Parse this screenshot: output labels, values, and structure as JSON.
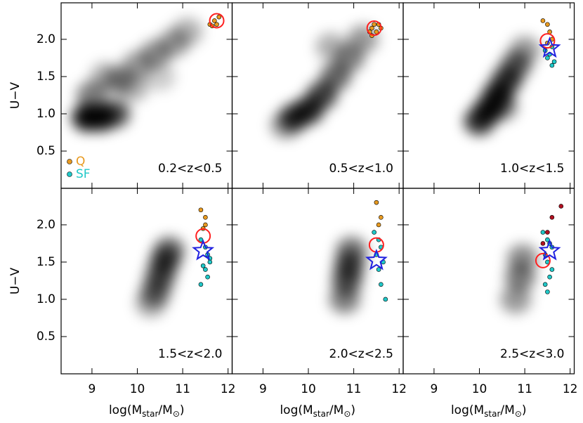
{
  "chart_data": [
    {
      "type": "scatter",
      "label": "0.2<z<0.5",
      "xlim": [
        8.32,
        12.09
      ],
      "ylim": [
        0.0,
        2.49
      ],
      "xticks": [
        9,
        10,
        11,
        12
      ],
      "yticks": [
        0.5,
        {
          "value": 1,
          "label": "1.0"
        },
        1.5,
        {
          "value": 2,
          "label": "2.0"
        }
      ],
      "density": {
        "x": [
          8.9,
          9.2,
          9.5,
          9.0,
          9.6,
          10.0,
          10.4,
          10.8,
          11.1,
          9.3,
          9.9,
          10.5
        ],
        "y": [
          0.95,
          0.95,
          1.0,
          1.25,
          1.45,
          1.65,
          1.8,
          1.95,
          2.1,
          1.5,
          1.35,
          1.5
        ],
        "values": [
          0.95,
          0.9,
          0.7,
          0.5,
          0.45,
          0.4,
          0.45,
          0.4,
          0.3,
          0.3,
          0.3,
          0.2
        ]
      },
      "series": [
        {
          "name": "Q",
          "color": "#e89a20",
          "marker": "dot",
          "x": [
            11.6,
            11.7,
            11.75,
            11.8,
            11.65
          ],
          "y": [
            2.2,
            2.25,
            2.2,
            2.3,
            2.18
          ]
        },
        {
          "name": "SF",
          "color": "#20c8c8",
          "marker": "dot",
          "x": [],
          "y": []
        },
        {
          "color": "#ff2020",
          "marker": "circle",
          "x": [
            11.75
          ],
          "y": [
            2.25
          ]
        }
      ]
    },
    {
      "type": "scatter",
      "label": "0.5<z<1.0",
      "xlim": [
        8.32,
        12.09
      ],
      "ylim": [
        0.0,
        2.49
      ],
      "xticks": [
        9,
        10,
        11,
        12
      ],
      "yticks": [
        0.5,
        {
          "value": 1,
          "label": "1.0"
        },
        1.5,
        {
          "value": 2,
          "label": "2.0"
        }
      ],
      "density": {
        "x": [
          9.7,
          10.0,
          10.3,
          10.6,
          10.9,
          11.2,
          9.5,
          10.5
        ],
        "y": [
          0.95,
          1.05,
          1.25,
          1.5,
          1.75,
          2.0,
          0.85,
          1.9
        ],
        "values": [
          0.8,
          0.85,
          0.75,
          0.6,
          0.5,
          0.4,
          0.4,
          0.3
        ]
      },
      "series": [
        {
          "color": "#e89a20",
          "marker": "dot",
          "x": [
            11.35,
            11.4,
            11.45,
            11.5,
            11.55,
            11.4,
            11.6
          ],
          "y": [
            2.1,
            2.15,
            2.2,
            2.1,
            2.2,
            2.05,
            2.15
          ]
        },
        {
          "color": "#ff2020",
          "marker": "circle",
          "x": [
            11.45
          ],
          "y": [
            2.15
          ]
        }
      ]
    },
    {
      "type": "scatter",
      "label": "1.0<z<1.5",
      "xlim": [
        8.32,
        12.09
      ],
      "ylim": [
        0.0,
        2.49
      ],
      "xticks": [
        9,
        10,
        11,
        12
      ],
      "yticks": [
        0.5,
        {
          "value": 1,
          "label": "1.0"
        },
        1.5,
        {
          "value": 2,
          "label": "2.0"
        }
      ],
      "density": {
        "x": [
          10.0,
          10.2,
          10.4,
          10.6,
          10.8,
          11.0,
          10.5
        ],
        "y": [
          0.9,
          1.05,
          1.25,
          1.45,
          1.65,
          1.85,
          1.1
        ],
        "values": [
          0.8,
          0.9,
          0.9,
          0.8,
          0.65,
          0.4,
          0.5
        ]
      },
      "series": [
        {
          "color": "#e89a20",
          "marker": "dot",
          "x": [
            11.4,
            11.5,
            11.55,
            11.6,
            11.5
          ],
          "y": [
            2.25,
            2.2,
            2.1,
            2.0,
            1.95
          ]
        },
        {
          "color": "#20c8c8",
          "marker": "dot",
          "x": [
            11.45,
            11.55,
            11.6,
            11.65,
            11.5,
            11.6
          ],
          "y": [
            1.85,
            1.8,
            1.9,
            1.7,
            1.75,
            1.65
          ]
        },
        {
          "color": "#ff2020",
          "marker": "circle",
          "x": [
            11.5
          ],
          "y": [
            1.98
          ]
        },
        {
          "color": "#2020e0",
          "marker": "star",
          "x": [
            11.55
          ],
          "y": [
            1.88
          ]
        }
      ]
    },
    {
      "type": "scatter",
      "label": "1.5<z<2.0",
      "xlim": [
        8.32,
        12.09
      ],
      "ylim": [
        0.0,
        2.49
      ],
      "xticks": [
        9,
        10,
        11,
        12
      ],
      "yticks": [
        0.5,
        {
          "value": 1,
          "label": "1.0"
        },
        1.5,
        {
          "value": 2,
          "label": "2.0"
        }
      ],
      "density": {
        "x": [
          10.4,
          10.5,
          10.6,
          10.7,
          10.3
        ],
        "y": [
          1.1,
          1.3,
          1.5,
          1.65,
          0.95
        ],
        "values": [
          0.55,
          0.65,
          0.7,
          0.6,
          0.35
        ]
      },
      "series": [
        {
          "color": "#e89a20",
          "marker": "dot",
          "x": [
            11.4,
            11.5,
            11.5,
            11.45
          ],
          "y": [
            2.2,
            2.1,
            2.0,
            1.95
          ]
        },
        {
          "color": "#20c8c8",
          "marker": "dot",
          "x": [
            11.4,
            11.5,
            11.55,
            11.6,
            11.45,
            11.5,
            11.6,
            11.55,
            11.4
          ],
          "y": [
            1.8,
            1.7,
            1.6,
            1.55,
            1.45,
            1.4,
            1.5,
            1.3,
            1.2
          ]
        },
        {
          "color": "#ff2020",
          "marker": "circle",
          "x": [
            11.45
          ],
          "y": [
            1.85
          ]
        },
        {
          "color": "#2020e0",
          "marker": "star",
          "x": [
            11.45
          ],
          "y": [
            1.65
          ]
        }
      ]
    },
    {
      "type": "scatter",
      "label": "2.0<z<2.5",
      "xlim": [
        8.32,
        12.09
      ],
      "ylim": [
        0.0,
        2.49
      ],
      "xticks": [
        9,
        10,
        11,
        12
      ],
      "yticks": [
        0.5,
        {
          "value": 1,
          "label": "1.0"
        },
        1.5,
        {
          "value": 2,
          "label": "2.0"
        }
      ],
      "density": {
        "x": [
          10.8,
          10.85,
          10.9,
          10.95
        ],
        "y": [
          1.0,
          1.25,
          1.45,
          1.65
        ],
        "values": [
          0.5,
          0.65,
          0.7,
          0.55
        ]
      },
      "series": [
        {
          "color": "#e89a20",
          "marker": "dot",
          "x": [
            11.5,
            11.6,
            11.55
          ],
          "y": [
            2.3,
            2.1,
            2.0
          ]
        },
        {
          "color": "#20c8c8",
          "marker": "dot",
          "x": [
            11.45,
            11.55,
            11.6,
            11.5,
            11.65,
            11.55,
            11.6,
            11.7
          ],
          "y": [
            1.9,
            1.8,
            1.7,
            1.6,
            1.5,
            1.4,
            1.2,
            1.0
          ]
        },
        {
          "color": "#ff2020",
          "marker": "circle",
          "x": [
            11.5
          ],
          "y": [
            1.73
          ]
        },
        {
          "color": "#2020e0",
          "marker": "star",
          "x": [
            11.5
          ],
          "y": [
            1.52
          ]
        }
      ]
    },
    {
      "type": "scatter",
      "label": "2.5<z<3.0",
      "xlim": [
        8.32,
        12.09
      ],
      "ylim": [
        0.0,
        2.49
      ],
      "xticks": [
        9,
        10,
        11,
        12
      ],
      "yticks": [
        0.5,
        {
          "value": 1,
          "label": "1.0"
        },
        1.5,
        {
          "value": 2,
          "label": "2.0"
        }
      ],
      "density": {
        "x": [
          10.8,
          10.9,
          10.95
        ],
        "y": [
          1.0,
          1.3,
          1.55
        ],
        "values": [
          0.4,
          0.5,
          0.45
        ]
      },
      "series": [
        {
          "color": "#b01020",
          "marker": "dot",
          "x": [
            11.6,
            11.8,
            11.5,
            11.4
          ],
          "y": [
            2.1,
            2.25,
            1.9,
            1.75
          ]
        },
        {
          "color": "#20c8c8",
          "marker": "dot",
          "x": [
            11.4,
            11.5,
            11.55,
            11.6,
            11.45,
            11.5,
            11.6,
            11.55,
            11.45,
            11.5
          ],
          "y": [
            1.9,
            1.8,
            1.75,
            1.7,
            1.6,
            1.5,
            1.4,
            1.3,
            1.2,
            1.1
          ]
        },
        {
          "color": "#ff2020",
          "marker": "circle",
          "x": [
            11.4
          ],
          "y": [
            1.52
          ]
        },
        {
          "color": "#2020e0",
          "marker": "star",
          "x": [
            11.55
          ],
          "y": [
            1.65
          ]
        }
      ]
    }
  ],
  "y_label": "U−V",
  "x_label": [
    "log(M",
    "star",
    "/M",
    "⊙",
    ")"
  ]
}
